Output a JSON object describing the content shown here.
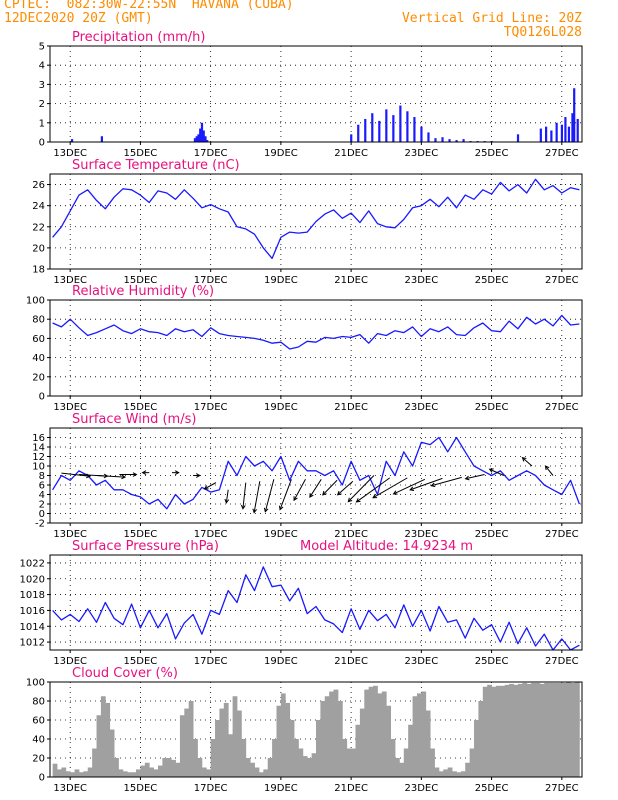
{
  "header": {
    "line1": "CPTEC:  082:30W-22:55N  HAVANA (CUBA)",
    "line2": "12DEC2020 20Z (GMT)",
    "grid_label": "Vertical Grid Line: 20Z",
    "code": "TQ0126L028"
  },
  "colors": {
    "header": "#ff8c00",
    "title": "#e8107f",
    "series": "#1a1aff",
    "bars": "#1a1aff",
    "cloud": "#a0a0a0",
    "arrows": "#000000"
  },
  "chart_data": [
    {
      "id": "precip",
      "type": "bar",
      "title": "Precipitation (mm/h)",
      "x": [
        1.1,
        2.8,
        8.1,
        8.2,
        8.3,
        8.4,
        8.5,
        8.6,
        8.7,
        8.8,
        17.0,
        17.4,
        17.8,
        18.2,
        18.6,
        19.0,
        19.4,
        19.8,
        20.2,
        20.6,
        21.0,
        21.4,
        21.8,
        22.2,
        22.6,
        23.0,
        23.4,
        23.8,
        24.2,
        24.6,
        25.0,
        26.5,
        27.8,
        28.1,
        28.4,
        28.7,
        29.0,
        29.2,
        29.4,
        29.6,
        29.7,
        29.9
      ],
      "values": [
        0.15,
        0.3,
        0.2,
        0.3,
        0.4,
        0.7,
        1.0,
        0.6,
        0.3,
        0.1,
        0.4,
        0.9,
        1.2,
        1.5,
        1.1,
        1.7,
        1.4,
        1.9,
        1.6,
        1.3,
        0.8,
        0.5,
        0.2,
        0.25,
        0.15,
        0.1,
        0.15,
        0.05,
        0.05,
        0.05,
        0.05,
        0.4,
        0.7,
        0.8,
        0.6,
        1.0,
        0.9,
        1.3,
        0.8,
        1.5,
        2.8,
        1.2
      ],
      "ylim": [
        0,
        5
      ],
      "yticks": [
        0,
        1,
        2,
        3,
        4,
        5
      ]
    },
    {
      "id": "temp",
      "type": "line",
      "title": "Surface Temperature (nC)",
      "x": [
        0,
        0.5,
        1,
        1.5,
        2,
        2.5,
        3,
        3.5,
        4,
        4.5,
        5,
        5.5,
        6,
        6.5,
        7,
        7.5,
        8,
        8.5,
        9,
        9.5,
        10,
        10.5,
        11,
        11.5,
        12,
        12.5,
        13,
        13.5,
        14,
        14.5,
        15,
        15.5,
        16,
        16.5,
        17,
        17.5,
        18,
        18.5,
        19,
        19.5,
        20,
        20.5,
        21,
        21.5,
        22,
        22.5,
        23,
        23.5,
        24,
        24.5,
        25,
        25.5,
        26,
        26.5,
        27,
        27.5,
        28,
        28.5,
        29,
        29.5,
        30
      ],
      "values": [
        21,
        22,
        23.5,
        25,
        25.5,
        24.5,
        23.7,
        24.8,
        25.6,
        25.5,
        25,
        24.3,
        25.4,
        25.2,
        24.6,
        25.5,
        24.7,
        23.8,
        24.1,
        23.7,
        23.4,
        22,
        21.8,
        21.3,
        20,
        19,
        21,
        21.5,
        21.4,
        21.5,
        22.5,
        23.2,
        23.6,
        22.8,
        23.3,
        22.4,
        23.5,
        22.3,
        22,
        21.9,
        22.7,
        23.8,
        24,
        24.6,
        23.9,
        24.8,
        23.8,
        25,
        24.6,
        25.5,
        25.1,
        26.2,
        25.4,
        26,
        25.2,
        26.5,
        25.5,
        25.9,
        25.2,
        25.7,
        25.5
      ],
      "ylim": [
        18,
        27
      ],
      "yticks": [
        18,
        20,
        22,
        24,
        26
      ]
    },
    {
      "id": "rh",
      "type": "line",
      "title": "Relative Humidity (%)",
      "x": [
        0,
        0.5,
        1,
        1.5,
        2,
        2.5,
        3,
        3.5,
        4,
        4.5,
        5,
        5.5,
        6,
        6.5,
        7,
        7.5,
        8,
        8.5,
        9,
        9.5,
        10,
        10.5,
        11,
        11.5,
        12,
        12.5,
        13,
        13.5,
        14,
        14.5,
        15,
        15.5,
        16,
        16.5,
        17,
        17.5,
        18,
        18.5,
        19,
        19.5,
        20,
        20.5,
        21,
        21.5,
        22,
        22.5,
        23,
        23.5,
        24,
        24.5,
        25,
        25.5,
        26,
        26.5,
        27,
        27.5,
        28,
        28.5,
        29,
        29.5,
        30
      ],
      "values": [
        76,
        72,
        80,
        71,
        63,
        66,
        70,
        74,
        68,
        65,
        70,
        67,
        66,
        63,
        70,
        67,
        69,
        62,
        71,
        65,
        63,
        62,
        61,
        60,
        58,
        55,
        56,
        49,
        51,
        57,
        56,
        61,
        60,
        62,
        61,
        64,
        55,
        65,
        63,
        68,
        66,
        72,
        62,
        70,
        67,
        72,
        64,
        63,
        71,
        76,
        68,
        67,
        78,
        70,
        82,
        75,
        80,
        73,
        84,
        74,
        75
      ],
      "ylim": [
        0,
        100
      ],
      "yticks": [
        0,
        20,
        40,
        60,
        80,
        100
      ]
    },
    {
      "id": "wind",
      "type": "line",
      "title": "Surface Wind (m/s)",
      "x": [
        0,
        0.5,
        1,
        1.5,
        2,
        2.5,
        3,
        3.5,
        4,
        4.5,
        5,
        5.5,
        6,
        6.5,
        7,
        7.5,
        8,
        8.5,
        9,
        9.5,
        10,
        10.5,
        11,
        11.5,
        12,
        12.5,
        13,
        13.5,
        14,
        14.5,
        15,
        15.5,
        16,
        16.5,
        17,
        17.5,
        18,
        18.5,
        19,
        19.5,
        20,
        20.5,
        21,
        21.5,
        22,
        22.5,
        23,
        23.5,
        24,
        24.5,
        25,
        25.5,
        26,
        26.5,
        27,
        27.5,
        28,
        28.5,
        29,
        29.5,
        30
      ],
      "values": [
        5,
        8,
        7,
        9,
        8,
        6,
        7,
        5,
        5,
        4,
        3.5,
        2,
        3,
        1,
        4,
        2,
        3,
        5.5,
        4.5,
        5,
        11,
        8,
        12,
        10,
        11,
        9,
        12,
        7,
        11,
        9,
        9,
        8,
        9,
        6,
        11,
        7,
        8,
        4,
        11,
        8,
        13,
        10,
        15,
        14.5,
        16,
        13,
        16,
        13,
        10,
        9,
        8,
        9,
        7,
        8,
        9,
        8,
        6,
        5,
        4,
        7,
        2
      ],
      "ylim": [
        -2,
        18
      ],
      "yticks": [
        -2,
        0,
        2,
        4,
        6,
        8,
        10,
        12,
        14,
        16
      ]
    },
    {
      "id": "pressure",
      "type": "line",
      "title": "Surface Pressure (hPa)",
      "annotation": "Model Altitude: 14.9234 m",
      "x": [
        0,
        0.5,
        1,
        1.5,
        2,
        2.5,
        3,
        3.5,
        4,
        4.5,
        5,
        5.5,
        6,
        6.5,
        7,
        7.5,
        8,
        8.5,
        9,
        9.5,
        10,
        10.5,
        11,
        11.5,
        12,
        12.5,
        13,
        13.5,
        14,
        14.5,
        15,
        15.5,
        16,
        16.5,
        17,
        17.5,
        18,
        18.5,
        19,
        19.5,
        20,
        20.5,
        21,
        21.5,
        22,
        22.5,
        23,
        23.5,
        24,
        24.5,
        25,
        25.5,
        26,
        26.5,
        27,
        27.5,
        28,
        28.5,
        29,
        29.5,
        30
      ],
      "values": [
        1016,
        1014.8,
        1015.5,
        1014.6,
        1016.2,
        1014.5,
        1017,
        1015,
        1014.2,
        1016.8,
        1013.8,
        1016,
        1013.8,
        1015.6,
        1012.4,
        1014.4,
        1015.5,
        1013,
        1016,
        1015.5,
        1018.5,
        1017,
        1020.5,
        1018.5,
        1021.5,
        1019,
        1019.2,
        1017.2,
        1018.8,
        1015.6,
        1016.5,
        1014.8,
        1014.3,
        1013.2,
        1016.2,
        1013.6,
        1016,
        1014.7,
        1015.5,
        1013.8,
        1016.7,
        1014,
        1016,
        1013.4,
        1016.5,
        1014.5,
        1014.8,
        1012.5,
        1015,
        1013.5,
        1014.2,
        1012,
        1014.5,
        1011.8,
        1013.8,
        1011.5,
        1013,
        1011,
        1012.4,
        1011,
        1011.6
      ],
      "ylim": [
        1011,
        1023
      ],
      "yticks": [
        1012,
        1014,
        1016,
        1018,
        1020,
        1022
      ]
    },
    {
      "id": "cloud",
      "type": "bar",
      "title": "Cloud Cover (%)",
      "x": [
        0,
        0.25,
        0.5,
        0.75,
        1,
        1.25,
        1.5,
        1.75,
        2,
        2.25,
        2.5,
        2.75,
        3,
        3.25,
        3.5,
        3.75,
        4,
        4.25,
        4.5,
        4.75,
        5,
        5.25,
        5.5,
        5.75,
        6,
        6.25,
        6.5,
        6.75,
        7,
        7.25,
        7.5,
        7.75,
        8,
        8.25,
        8.5,
        8.75,
        9,
        9.25,
        9.5,
        9.75,
        10,
        10.25,
        10.5,
        10.75,
        11,
        11.25,
        11.5,
        11.75,
        12,
        12.25,
        12.5,
        12.75,
        13,
        13.25,
        13.5,
        13.75,
        14,
        14.25,
        14.5,
        14.75,
        15,
        15.25,
        15.5,
        15.75,
        16,
        16.25,
        16.5,
        16.75,
        17,
        17.25,
        17.5,
        17.75,
        18,
        18.25,
        18.5,
        18.75,
        19,
        19.25,
        19.5,
        19.75,
        20,
        20.25,
        20.5,
        20.75,
        21,
        21.25,
        21.5,
        21.75,
        22,
        22.25,
        22.5,
        22.75,
        23,
        23.25,
        23.5,
        23.75,
        24,
        24.25,
        24.5,
        24.75,
        25,
        25.25,
        25.5,
        25.75,
        26,
        26.25,
        26.5,
        26.75,
        27,
        27.25,
        27.5,
        27.75,
        28,
        28.25,
        28.5,
        28.75,
        29,
        29.25,
        29.5,
        29.75
      ],
      "values": [
        14,
        8,
        10,
        6,
        5,
        8,
        5,
        6,
        10,
        30,
        65,
        85,
        78,
        50,
        20,
        8,
        6,
        5,
        5,
        8,
        12,
        15,
        10,
        8,
        12,
        20,
        20,
        18,
        15,
        65,
        72,
        80,
        40,
        20,
        10,
        8,
        40,
        60,
        72,
        78,
        45,
        85,
        70,
        40,
        20,
        15,
        10,
        5,
        8,
        20,
        40,
        75,
        88,
        78,
        60,
        40,
        30,
        22,
        20,
        25,
        60,
        80,
        85,
        90,
        92,
        80,
        40,
        30,
        30,
        55,
        72,
        92,
        95,
        96,
        88,
        90,
        75,
        40,
        20,
        15,
        30,
        55,
        85,
        88,
        90,
        70,
        30,
        10,
        6,
        8,
        10,
        6,
        5,
        6,
        15,
        30,
        60,
        80,
        95,
        97,
        95,
        96,
        96,
        97,
        98,
        97,
        98,
        99,
        98,
        99,
        99,
        98,
        99,
        99,
        99,
        99,
        99,
        100,
        99,
        100
      ],
      "ylim": [
        0,
        100
      ],
      "yticks": [
        0,
        20,
        40,
        60,
        80,
        100
      ]
    }
  ],
  "x_axis": {
    "range": [
      -0.15,
      30.15
    ],
    "tick_positions": [
      1,
      5,
      9,
      13,
      17,
      21,
      25,
      29
    ],
    "tick_labels": [
      "13DEC",
      "15DEC",
      "17DEC",
      "19DEC",
      "21DEC",
      "23DEC",
      "25DEC",
      "27DEC"
    ]
  },
  "wind_vectors": [
    {
      "x": 0.5,
      "y": 8.5,
      "u": 3,
      "v": -0.6
    },
    {
      "x": 1.5,
      "y": 8.2,
      "u": 3,
      "v": -0.3
    },
    {
      "x": 2.5,
      "y": 8.0,
      "u": 3,
      "v": -0.3
    },
    {
      "x": 3.8,
      "y": 8.2,
      "u": 1.8,
      "v": 0
    },
    {
      "x": 5.5,
      "y": 8.6,
      "u": -0.7,
      "v": 0
    },
    {
      "x": 6.8,
      "y": 8.6,
      "u": 0.7,
      "v": 0
    },
    {
      "x": 8.0,
      "y": 8.0,
      "u": 0.7,
      "v": 0
    },
    {
      "x": 9.3,
      "y": 6.5,
      "u": -1.2,
      "v": -1.2
    },
    {
      "x": 10.0,
      "y": 5.0,
      "u": -0.2,
      "v": -2.5
    },
    {
      "x": 11.0,
      "y": 6.5,
      "u": -0.3,
      "v": -5.0
    },
    {
      "x": 11.8,
      "y": 6.8,
      "u": -0.6,
      "v": -6.0
    },
    {
      "x": 12.6,
      "y": 7.2,
      "u": -0.9,
      "v": -6.2
    },
    {
      "x": 13.6,
      "y": 7.2,
      "u": -1.2,
      "v": -5.8
    },
    {
      "x": 14.4,
      "y": 7.2,
      "u": -1.2,
      "v": -4.0
    },
    {
      "x": 15.3,
      "y": 7.2,
      "u": -1.2,
      "v": -3.4
    },
    {
      "x": 16.2,
      "y": 7.0,
      "u": -1.5,
      "v": -2.8
    },
    {
      "x": 17.1,
      "y": 6.8,
      "u": -1.6,
      "v": -2.6
    },
    {
      "x": 18.3,
      "y": 8.0,
      "u": -2.7,
      "v": -5.0
    },
    {
      "x": 19.2,
      "y": 7.5,
      "u": -3.5,
      "v": -4.6
    },
    {
      "x": 20.2,
      "y": 7.5,
      "u": -3.6,
      "v": -3.8
    },
    {
      "x": 21.2,
      "y": 7.2,
      "u": -3.3,
      "v": -2.8
    },
    {
      "x": 22.2,
      "y": 7.4,
      "u": -3.4,
      "v": -2.2
    },
    {
      "x": 23.3,
      "y": 7.6,
      "u": -3.2,
      "v": -1.6
    },
    {
      "x": 24.6,
      "y": 8.2,
      "u": -2.0,
      "v": -0.8
    },
    {
      "x": 25.7,
      "y": 8.0,
      "u": -1.5,
      "v": 1.2
    },
    {
      "x": 27.3,
      "y": 10.0,
      "u": -1.0,
      "v": 1.6
    },
    {
      "x": 28.5,
      "y": 8.0,
      "u": -0.8,
      "v": 1.8
    }
  ]
}
